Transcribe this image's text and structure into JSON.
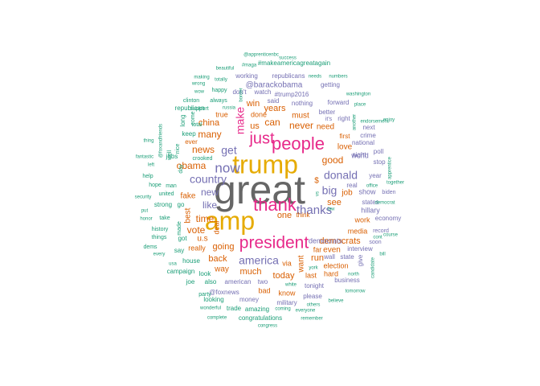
{
  "palette": {
    "grey": "#666666",
    "gold": "#e6ab02",
    "magenta": "#e7298a",
    "purple": "#7570b3",
    "orange": "#d95f02",
    "green": "#1b9e77"
  },
  "words": [
    {
      "text": "great",
      "color": "grey"
    },
    {
      "text": "trump",
      "color": "gold"
    },
    {
      "text": "amp",
      "color": "gold"
    },
    {
      "text": "thank",
      "color": "magenta"
    },
    {
      "text": "president",
      "color": "magenta"
    },
    {
      "text": "people",
      "color": "magenta"
    },
    {
      "text": "just",
      "color": "magenta"
    },
    {
      "text": "thanks",
      "color": "purple"
    },
    {
      "text": "now",
      "color": "purple"
    },
    {
      "text": "country",
      "color": "purple"
    },
    {
      "text": "america",
      "color": "purple"
    },
    {
      "text": "big",
      "color": "purple"
    },
    {
      "text": "donald",
      "color": "purple"
    },
    {
      "text": "get",
      "color": "purple"
    },
    {
      "text": "like",
      "color": "purple"
    },
    {
      "text": "new",
      "color": "purple"
    },
    {
      "text": "make",
      "color": "magenta"
    },
    {
      "text": "news",
      "color": "orange"
    },
    {
      "text": "obama",
      "color": "orange"
    },
    {
      "text": "time",
      "color": "orange"
    },
    {
      "text": "vote",
      "color": "orange"
    },
    {
      "text": "good",
      "color": "orange"
    },
    {
      "text": "many",
      "color": "orange"
    },
    {
      "text": "can",
      "color": "orange"
    },
    {
      "text": "never",
      "color": "orange"
    },
    {
      "text": "china",
      "color": "orange"
    },
    {
      "text": "much",
      "color": "orange"
    },
    {
      "text": "back",
      "color": "orange"
    },
    {
      "text": "going",
      "color": "orange"
    },
    {
      "text": "democrats",
      "color": "orange"
    },
    {
      "text": "today",
      "color": "orange"
    },
    {
      "text": "one",
      "color": "orange"
    },
    {
      "text": "see",
      "color": "orange"
    },
    {
      "text": "run",
      "color": "orange"
    },
    {
      "text": "years",
      "color": "orange"
    },
    {
      "text": "must",
      "color": "orange"
    },
    {
      "text": "u.s",
      "color": "orange"
    },
    {
      "text": "win",
      "color": "orange"
    },
    {
      "text": "us",
      "color": "orange"
    },
    {
      "text": "job",
      "color": "orange"
    },
    {
      "text": "want",
      "color": "orange"
    },
    {
      "text": "need",
      "color": "orange"
    },
    {
      "text": "way",
      "color": "orange"
    },
    {
      "text": "love",
      "color": "orange"
    },
    {
      "text": "best",
      "color": "orange"
    },
    {
      "text": "fake",
      "color": "orange"
    },
    {
      "text": "even",
      "color": "orange"
    },
    {
      "text": "really",
      "color": "orange"
    },
    {
      "text": "true",
      "color": "orange"
    },
    {
      "text": "hard",
      "color": "orange"
    },
    {
      "text": "work",
      "color": "orange"
    },
    {
      "text": "last",
      "color": "orange"
    },
    {
      "text": "media",
      "color": "orange"
    },
    {
      "text": "know",
      "color": "orange"
    },
    {
      "text": "bad",
      "color": "orange"
    },
    {
      "text": "ever",
      "color": "orange"
    },
    {
      "text": "first",
      "color": "orange"
    },
    {
      "text": "far",
      "color": "orange"
    },
    {
      "text": "election",
      "color": "orange"
    },
    {
      "text": "via",
      "color": "orange"
    },
    {
      "text": "think",
      "color": "orange"
    },
    {
      "text": "deal",
      "color": "orange"
    },
    {
      "text": "done",
      "color": "orange"
    },
    {
      "text": "$",
      "color": "orange"
    },
    {
      "text": "show",
      "color": "purple"
    },
    {
      "text": "world",
      "color": "purple"
    },
    {
      "text": "hillary",
      "color": "purple"
    },
    {
      "text": "democrats",
      "color": "purple"
    },
    {
      "text": "wall",
      "color": "purple"
    },
    {
      "text": "american",
      "color": "purple"
    },
    {
      "text": "@barackobama",
      "color": "purple"
    },
    {
      "text": "#trump2016",
      "color": "purple"
    },
    {
      "text": "@foxnews",
      "color": "purple"
    },
    {
      "text": "states",
      "color": "purple"
    },
    {
      "text": "real",
      "color": "purple"
    },
    {
      "text": "night",
      "color": "purple"
    },
    {
      "text": "crime",
      "color": "purple"
    },
    {
      "text": "next",
      "color": "purple"
    },
    {
      "text": "state",
      "color": "purple"
    },
    {
      "text": "tonight",
      "color": "purple"
    },
    {
      "text": "two",
      "color": "purple"
    },
    {
      "text": "money",
      "color": "purple"
    },
    {
      "text": "military",
      "color": "purple"
    },
    {
      "text": "business",
      "color": "purple"
    },
    {
      "text": "please",
      "color": "purple"
    },
    {
      "text": "forward",
      "color": "purple"
    },
    {
      "text": "nothing",
      "color": "purple"
    },
    {
      "text": "said",
      "color": "purple"
    },
    {
      "text": "don't",
      "color": "purple"
    },
    {
      "text": "watch",
      "color": "purple"
    },
    {
      "text": "republicans",
      "color": "purple"
    },
    {
      "text": "working",
      "color": "purple"
    },
    {
      "text": "getting",
      "color": "purple"
    },
    {
      "text": "better",
      "color": "purple"
    },
    {
      "text": "it's",
      "color": "purple"
    },
    {
      "text": "right",
      "color": "purple"
    },
    {
      "text": "national",
      "color": "purple"
    },
    {
      "text": "stop",
      "color": "purple"
    },
    {
      "text": "poll",
      "color": "purple"
    },
    {
      "text": "year",
      "color": "purple"
    },
    {
      "text": "biden",
      "color": "purple"
    },
    {
      "text": "economy",
      "color": "purple"
    },
    {
      "text": "record",
      "color": "purple"
    },
    {
      "text": "soon",
      "color": "purple"
    },
    {
      "text": "interview",
      "color": "purple"
    },
    {
      "text": "give",
      "color": "purple"
    },
    {
      "text": "#makeamericagreatagain",
      "color": "green"
    },
    {
      "text": "@apprenticenbc",
      "color": "green"
    },
    {
      "text": "success",
      "color": "green"
    },
    {
      "text": "beautiful",
      "color": "green"
    },
    {
      "text": "#maga",
      "color": "green"
    },
    {
      "text": "needs",
      "color": "green"
    },
    {
      "text": "numbers",
      "color": "green"
    },
    {
      "text": "making",
      "color": "green"
    },
    {
      "text": "totally",
      "color": "green"
    },
    {
      "text": "wrong",
      "color": "green"
    },
    {
      "text": "wow",
      "color": "green"
    },
    {
      "text": "happy",
      "color": "green"
    },
    {
      "text": "washington",
      "color": "green"
    },
    {
      "text": "clinton",
      "color": "green"
    },
    {
      "text": "always",
      "color": "green"
    },
    {
      "text": "russia",
      "color": "green"
    },
    {
      "text": "border",
      "color": "green"
    },
    {
      "text": "place",
      "color": "green"
    },
    {
      "text": "republican",
      "color": "green"
    },
    {
      "text": "endorsement",
      "color": "green"
    },
    {
      "text": "another",
      "color": "green"
    },
    {
      "text": "enjoy",
      "color": "green"
    },
    {
      "text": "thing",
      "color": "green"
    },
    {
      "text": "@foxandfriends",
      "color": "green"
    },
    {
      "text": "long",
      "color": "green"
    },
    {
      "text": "nice",
      "color": "green"
    },
    {
      "text": "support",
      "color": "green"
    },
    {
      "text": "come",
      "color": "green"
    },
    {
      "text": "keep",
      "color": "green"
    },
    {
      "text": "jobs",
      "color": "green"
    },
    {
      "text": "well",
      "color": "green"
    },
    {
      "text": "total",
      "color": "green"
    },
    {
      "text": "fantastic",
      "color": "green"
    },
    {
      "text": "left",
      "color": "green"
    },
    {
      "text": "day",
      "color": "green"
    },
    {
      "text": "crooked",
      "color": "green"
    },
    {
      "text": "apprentice",
      "color": "green"
    },
    {
      "text": "office",
      "color": "green"
    },
    {
      "text": "together",
      "color": "green"
    },
    {
      "text": "help",
      "color": "green"
    },
    {
      "text": "hope",
      "color": "green"
    },
    {
      "text": "man",
      "color": "green"
    },
    {
      "text": "security",
      "color": "green"
    },
    {
      "text": "united",
      "color": "green"
    },
    {
      "text": "put",
      "color": "green"
    },
    {
      "text": "strong",
      "color": "green"
    },
    {
      "text": "go",
      "color": "green"
    },
    {
      "text": "honor",
      "color": "green"
    },
    {
      "text": "take",
      "color": "green"
    },
    {
      "text": "made",
      "color": "green"
    },
    {
      "text": "democrat",
      "color": "green"
    },
    {
      "text": "history",
      "color": "green"
    },
    {
      "text": "things",
      "color": "green"
    },
    {
      "text": "got",
      "color": "green"
    },
    {
      "text": "dems",
      "color": "green"
    },
    {
      "text": "say",
      "color": "green"
    },
    {
      "text": "every",
      "color": "green"
    },
    {
      "text": "usa",
      "color": "green"
    },
    {
      "text": "house",
      "color": "green"
    },
    {
      "text": "campaign",
      "color": "green"
    },
    {
      "text": "look",
      "color": "green"
    },
    {
      "text": "joe",
      "color": "green"
    },
    {
      "text": "also",
      "color": "green"
    },
    {
      "text": "cont",
      "color": "green"
    },
    {
      "text": "course",
      "color": "green"
    },
    {
      "text": "bill",
      "color": "green"
    },
    {
      "text": "north",
      "color": "green"
    },
    {
      "text": "candidate",
      "color": "green"
    },
    {
      "text": "york",
      "color": "green"
    },
    {
      "text": "white",
      "color": "green"
    },
    {
      "text": "tomorrow",
      "color": "green"
    },
    {
      "text": "party",
      "color": "green"
    },
    {
      "text": "looking",
      "color": "green"
    },
    {
      "text": "wonderful",
      "color": "green"
    },
    {
      "text": "trade",
      "color": "green"
    },
    {
      "text": "amazing",
      "color": "green"
    },
    {
      "text": "coming",
      "color": "green"
    },
    {
      "text": "everyone",
      "color": "green"
    },
    {
      "text": "others",
      "color": "green"
    },
    {
      "text": "believe",
      "color": "green"
    },
    {
      "text": "complete",
      "color": "green"
    },
    {
      "text": "congratulations",
      "color": "green"
    },
    {
      "text": "congress",
      "color": "green"
    },
    {
      "text": "remember",
      "color": "green"
    },
    {
      "text": "law",
      "color": "green"
    },
    {
      "text": "vs",
      "color": "green"
    }
  ]
}
